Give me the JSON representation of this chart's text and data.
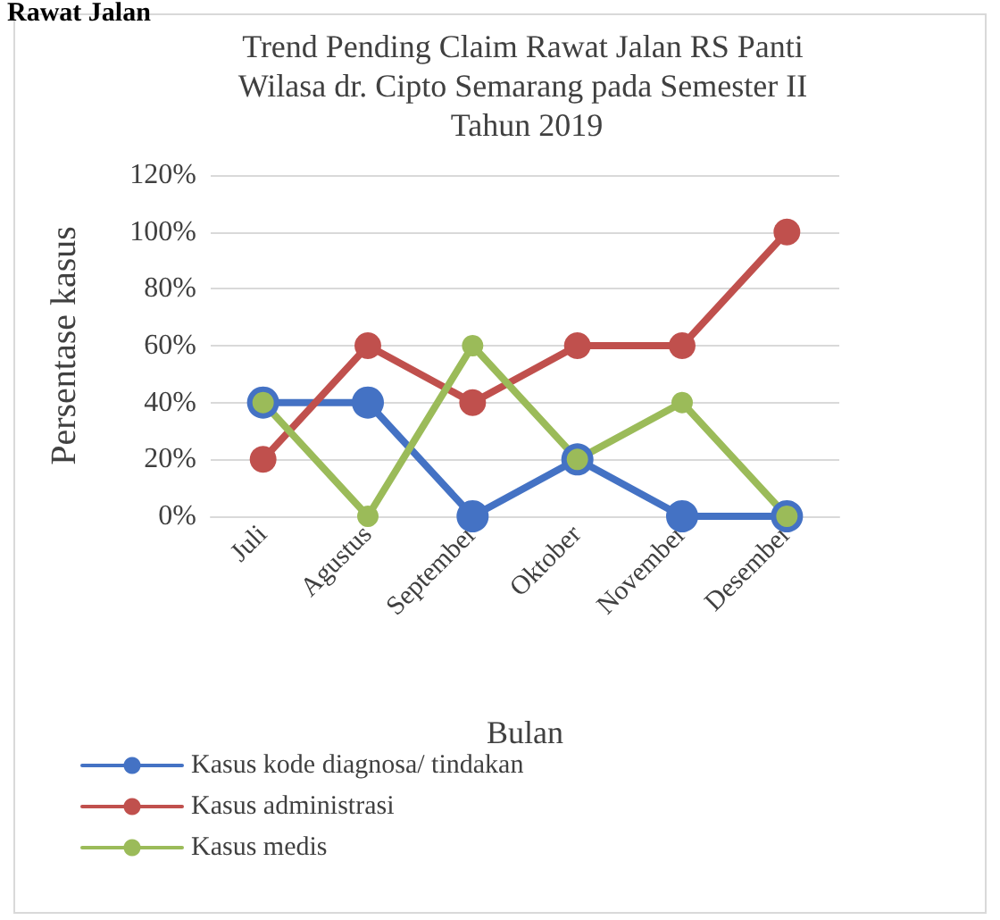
{
  "chart_data": {
    "type": "line",
    "title": "Trend Pending Claim Rawat Jalan RS Panti Wilasa dr. Cipto Semarang pada Semester II Tahun 2019",
    "xlabel": "Bulan",
    "ylabel": "Persentase kasus",
    "annotations": [
      "Rawat Jalan"
    ],
    "categories": [
      "Juli",
      "Agustus",
      "September",
      "Oktober",
      "November",
      "Desember"
    ],
    "series": [
      {
        "name": "Kasus kode diagnosa/ tindakan",
        "color": "#4472c4",
        "values": [
          40,
          40,
          0,
          20,
          0,
          0
        ]
      },
      {
        "name": "Kasus administrasi",
        "color": "#c0504d",
        "values": [
          20,
          60,
          40,
          60,
          60,
          100
        ]
      },
      {
        "name": "Kasus medis",
        "color": "#9bbb59",
        "values": [
          40,
          0,
          60,
          20,
          40,
          0
        ]
      }
    ],
    "ylim": [
      0,
      120
    ],
    "yticks": [
      {
        "value": 0,
        "label": "0%"
      },
      {
        "value": 20,
        "label": "20%"
      },
      {
        "value": 40,
        "label": "40%"
      },
      {
        "value": 60,
        "label": "60%"
      },
      {
        "value": 80,
        "label": "80%"
      },
      {
        "value": 100,
        "label": "100%"
      },
      {
        "value": 120,
        "label": "120%"
      }
    ],
    "grid": "y",
    "legend": "bottom left",
    "marker": "circle",
    "line_style": "solid"
  }
}
